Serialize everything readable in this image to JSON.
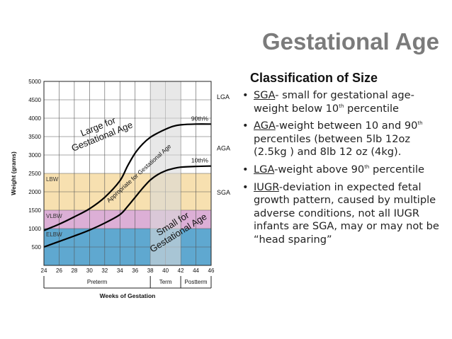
{
  "slide": {
    "title": "Gestational Age",
    "subtitle": "Classification of Size"
  },
  "bullets": [
    {
      "term": "SGA",
      "parts": [
        "- small for gestational age-weight below 10",
        "th",
        " percentile"
      ]
    },
    {
      "term": "AGA",
      "parts": [
        "-weight between 10 and 90",
        "th",
        " percentiles (between 5lb 12oz (2.5kg ) and 8lb 12 oz (4kg)."
      ]
    },
    {
      "term": "LGA",
      "parts": [
        "-weight above 90",
        "th",
        " percentile"
      ]
    },
    {
      "term": "IUGR",
      "parts": [
        "-deviation in expected fetal growth pattern, caused by multiple adverse conditions, not all IUGR infants are SGA, may or may not be “head sparing”"
      ]
    }
  ],
  "chart_data": {
    "type": "line",
    "xlabel": "Weeks of Gestation",
    "ylabel": "Weight (grams)",
    "xlim": [
      24,
      46
    ],
    "ylim": [
      0,
      5000
    ],
    "x_ticks": [
      24,
      26,
      28,
      30,
      32,
      34,
      36,
      38,
      40,
      42,
      44,
      46
    ],
    "y_ticks": [
      500,
      1000,
      1500,
      2000,
      2500,
      3000,
      3500,
      4000,
      4500,
      5000
    ],
    "series": [
      {
        "name": "90th%",
        "x": [
          24,
          26,
          28,
          30,
          32,
          34,
          35,
          36,
          37,
          38,
          39,
          40,
          41,
          42,
          44,
          46
        ],
        "y": [
          950,
          1120,
          1320,
          1540,
          1850,
          2300,
          2700,
          3050,
          3300,
          3480,
          3600,
          3700,
          3780,
          3820,
          3840,
          3840
        ]
      },
      {
        "name": "10th%",
        "x": [
          24,
          26,
          28,
          30,
          32,
          34,
          35,
          36,
          37,
          38,
          39,
          40,
          41,
          42,
          44,
          46
        ],
        "y": [
          500,
          650,
          800,
          960,
          1150,
          1380,
          1600,
          1850,
          2100,
          2320,
          2470,
          2570,
          2630,
          2670,
          2690,
          2700
        ]
      }
    ],
    "weight_bands": [
      {
        "label": "LBW",
        "from": 1500,
        "to": 2500,
        "color": "#f7e0b0"
      },
      {
        "label": "VLBW",
        "from": 1000,
        "to": 1500,
        "color": "#dcafd6"
      },
      {
        "label": "ELBW",
        "from": 0,
        "to": 1000,
        "color": "#5fa8d0"
      }
    ],
    "term_band": {
      "from": 38,
      "to": 42,
      "color": "#d9d9d9"
    },
    "periods": [
      {
        "label": "Preterm",
        "from": 24,
        "to": 38
      },
      {
        "label": "Term",
        "from": 38,
        "to": 42
      },
      {
        "label": "Postterm",
        "from": 42,
        "to": 46
      }
    ],
    "region_labels": [
      {
        "id": "lga",
        "text": "Large for Gestational Age"
      },
      {
        "id": "aga",
        "text": "Appropriate for Gestational Age"
      },
      {
        "id": "sga",
        "text": "Small for Gestational Age"
      }
    ],
    "side_labels": [
      {
        "text": "LGA",
        "y": 4600
      },
      {
        "text": "AGA",
        "y": 3200
      },
      {
        "text": "SGA",
        "y": 2000
      }
    ]
  }
}
